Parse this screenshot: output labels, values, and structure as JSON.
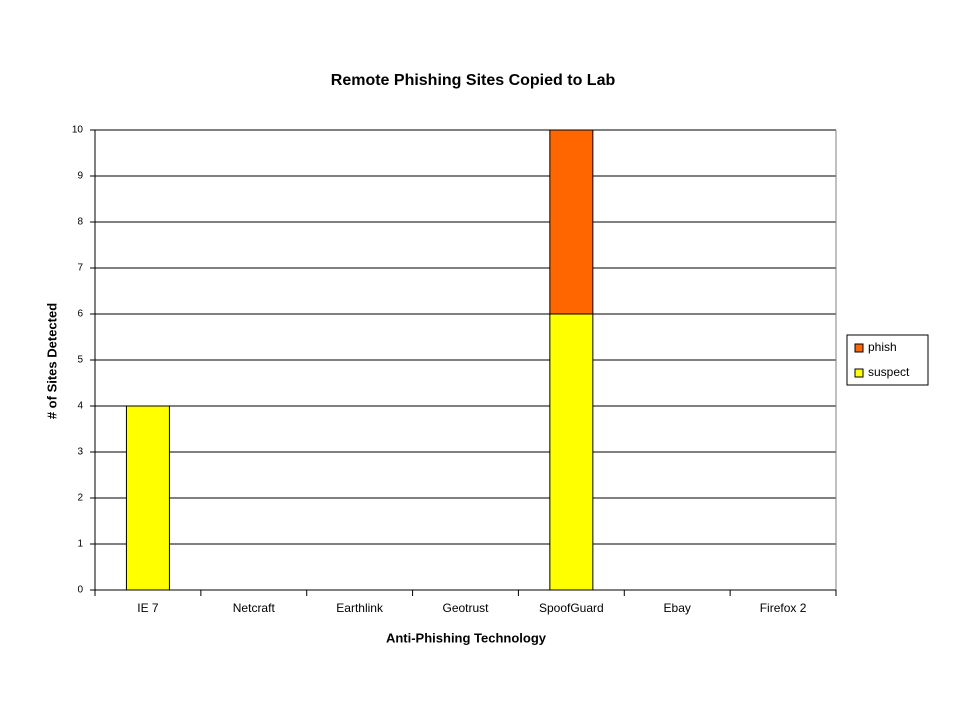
{
  "chart_data": {
    "type": "stacked_bar",
    "title": "Remote Phishing Sites Copied to Lab",
    "x_label": "Anti-Phishing Technology",
    "y_label": "# of Sites Detected",
    "categories": [
      "IE 7",
      "Netcraft",
      "Earthlink",
      "Geotrust",
      "SpoofGuard",
      "Ebay",
      "Firefox 2"
    ],
    "series": [
      {
        "name": "suspect",
        "color": "#ffff00",
        "values": [
          4,
          0,
          0,
          0,
          6,
          0,
          0
        ]
      },
      {
        "name": "phish",
        "color": "#ff6600",
        "values": [
          0,
          0,
          0,
          0,
          4,
          0,
          0
        ]
      }
    ],
    "ylim": [
      0,
      10
    ],
    "yticks": [
      0,
      1,
      2,
      3,
      4,
      5,
      6,
      7,
      8,
      9,
      10
    ],
    "grid": true,
    "legend": "right"
  }
}
